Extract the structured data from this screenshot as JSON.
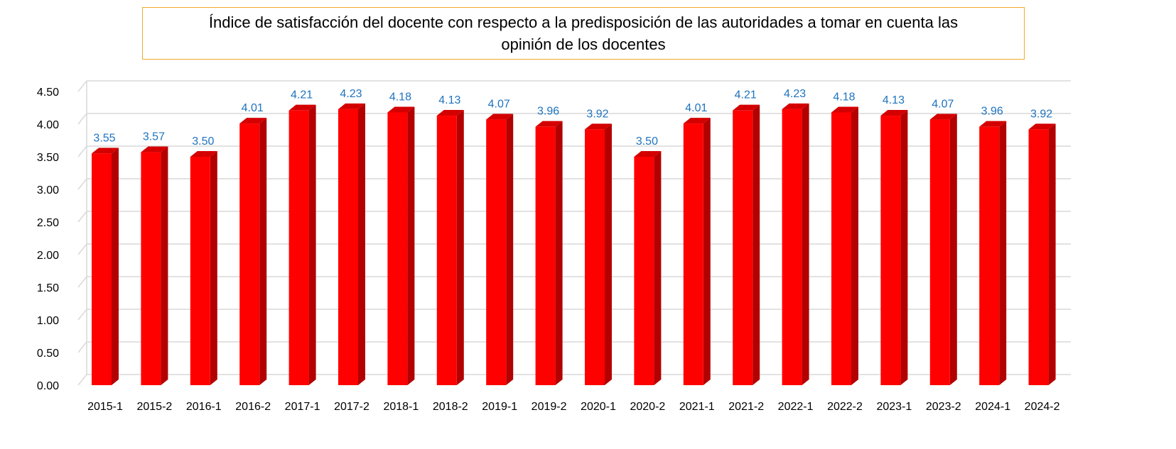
{
  "chart_data": {
    "type": "bar",
    "title_line1": "Índice de satisfacción del docente con respecto a la predisposición de las autoridades a tomar en cuenta las",
    "title_line2": "opinión de los docentes",
    "categories": [
      "2015-1",
      "2015-2",
      "2016-1",
      "2016-2",
      "2017-1",
      "2017-2",
      "2018-1",
      "2018-2",
      "2019-1",
      "2019-2",
      "2020-1",
      "2020-2",
      "2021-1",
      "2021-2",
      "2022-1",
      "2022-2",
      "2023-1",
      "2023-2",
      "2024-1",
      "2024-2"
    ],
    "values": [
      3.55,
      3.57,
      3.5,
      4.01,
      4.21,
      4.23,
      4.18,
      4.13,
      4.07,
      3.96,
      3.92,
      3.5,
      4.01,
      4.21,
      4.23,
      4.18,
      4.13,
      4.07,
      3.96,
      3.92
    ],
    "ylim": [
      0,
      4.5
    ],
    "yticks": [
      0,
      0.5,
      1,
      1.5,
      2,
      2.5,
      3,
      3.5,
      4,
      4.5
    ],
    "decimals": 2,
    "grid": true,
    "legend": "none",
    "style": "3d-column",
    "colors": {
      "bar_front": "#ff0000",
      "bar_side": "#b30000",
      "bar_top": "#d40000",
      "data_label": "#1e73be",
      "title_border": "#f0a92a",
      "grid": "#d9d9d9"
    }
  }
}
